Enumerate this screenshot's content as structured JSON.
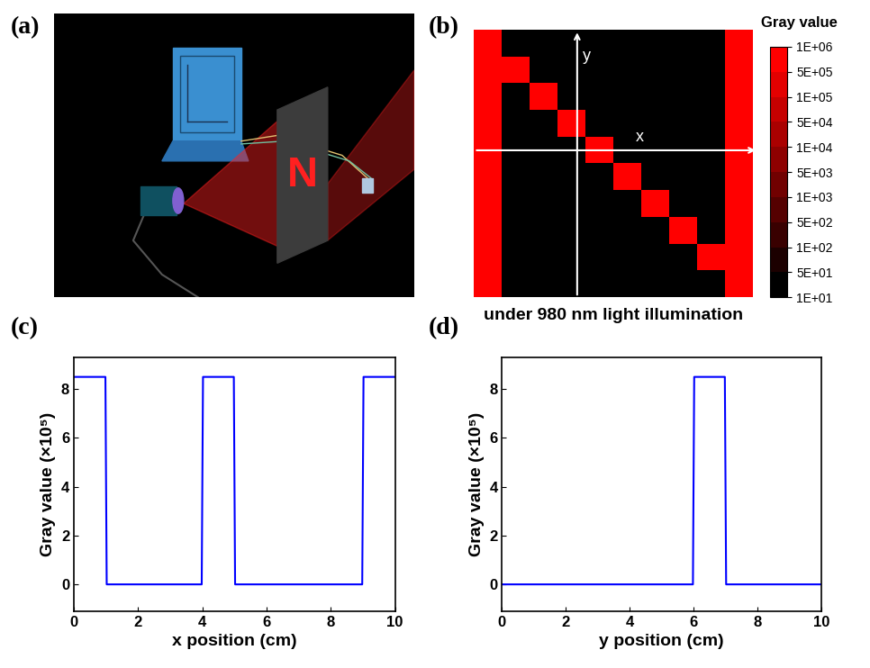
{
  "chart_data": [
    {
      "type": "illustration",
      "panel_label": "(a)",
      "mask_text": "N"
    },
    {
      "type": "heatmap",
      "panel_label": "(b)",
      "x_label": "x",
      "y_label": "y",
      "caption": "under 980 nm light illumination",
      "tick_labels": false,
      "color": "#ff0000",
      "cells": [
        [
          850000,
          10,
          10,
          10,
          10,
          10,
          10,
          10,
          10,
          850000
        ],
        [
          850000,
          850000,
          10,
          10,
          10,
          10,
          10,
          10,
          10,
          850000
        ],
        [
          850000,
          10,
          850000,
          10,
          10,
          10,
          10,
          10,
          10,
          850000
        ],
        [
          850000,
          10,
          10,
          850000,
          10,
          10,
          10,
          10,
          10,
          850000
        ],
        [
          850000,
          10,
          10,
          10,
          850000,
          10,
          10,
          10,
          10,
          850000
        ],
        [
          850000,
          10,
          10,
          10,
          10,
          850000,
          10,
          10,
          10,
          850000
        ],
        [
          850000,
          10,
          10,
          10,
          10,
          10,
          850000,
          10,
          10,
          850000
        ],
        [
          850000,
          10,
          10,
          10,
          10,
          10,
          10,
          850000,
          10,
          850000
        ],
        [
          850000,
          10,
          10,
          10,
          10,
          10,
          10,
          10,
          850000,
          850000
        ],
        [
          850000,
          10,
          10,
          10,
          10,
          10,
          10,
          10,
          10,
          850000
        ]
      ],
      "colorbar": {
        "title": "Gray value",
        "range": [
          10,
          1000000
        ],
        "ticks": [
          {
            "value": 10,
            "label": "1E+01"
          },
          {
            "value": 50,
            "label": "5E+01"
          },
          {
            "value": 100,
            "label": "1E+02"
          },
          {
            "value": 500,
            "label": "5E+02"
          },
          {
            "value": 1000,
            "label": "1E+03"
          },
          {
            "value": 5000,
            "label": "5E+03"
          },
          {
            "value": 10000,
            "label": "1E+04"
          },
          {
            "value": 50000,
            "label": "5E+04"
          },
          {
            "value": 100000,
            "label": "1E+05"
          },
          {
            "value": 500000,
            "label": "5E+05"
          },
          {
            "value": 1000000,
            "label": "1E+06"
          }
        ]
      }
    },
    {
      "type": "line",
      "panel_label": "(c)",
      "x_label": "x position (cm)",
      "y_label": "Gray value (×10⁵)",
      "x": [
        0,
        0.98,
        1.02,
        3.98,
        4.02,
        4.98,
        5.02,
        8.98,
        9.02,
        10
      ],
      "values": [
        8.5,
        8.5,
        0,
        0,
        8.5,
        8.5,
        0,
        0,
        8.5,
        8.5
      ],
      "color": "#0000ff",
      "xlim": [
        0,
        10
      ],
      "xticks": [
        0,
        2,
        4,
        6,
        8,
        10
      ],
      "ylim": [
        -1.1,
        9.3
      ],
      "yticks": [
        0,
        2,
        4,
        6,
        8
      ]
    },
    {
      "type": "line",
      "panel_label": "(d)",
      "x_label": "y position (cm)",
      "y_label": "Gray value (×10⁵)",
      "x": [
        0,
        5.98,
        6.02,
        6.98,
        7.02,
        10
      ],
      "values": [
        0,
        0,
        8.5,
        8.5,
        0,
        0
      ],
      "color": "#0000ff",
      "xlim": [
        0,
        10
      ],
      "xticks": [
        0,
        2,
        4,
        6,
        8,
        10
      ],
      "ylim": [
        -1.1,
        9.3
      ],
      "yticks": [
        0,
        2,
        4,
        6,
        8
      ]
    }
  ]
}
